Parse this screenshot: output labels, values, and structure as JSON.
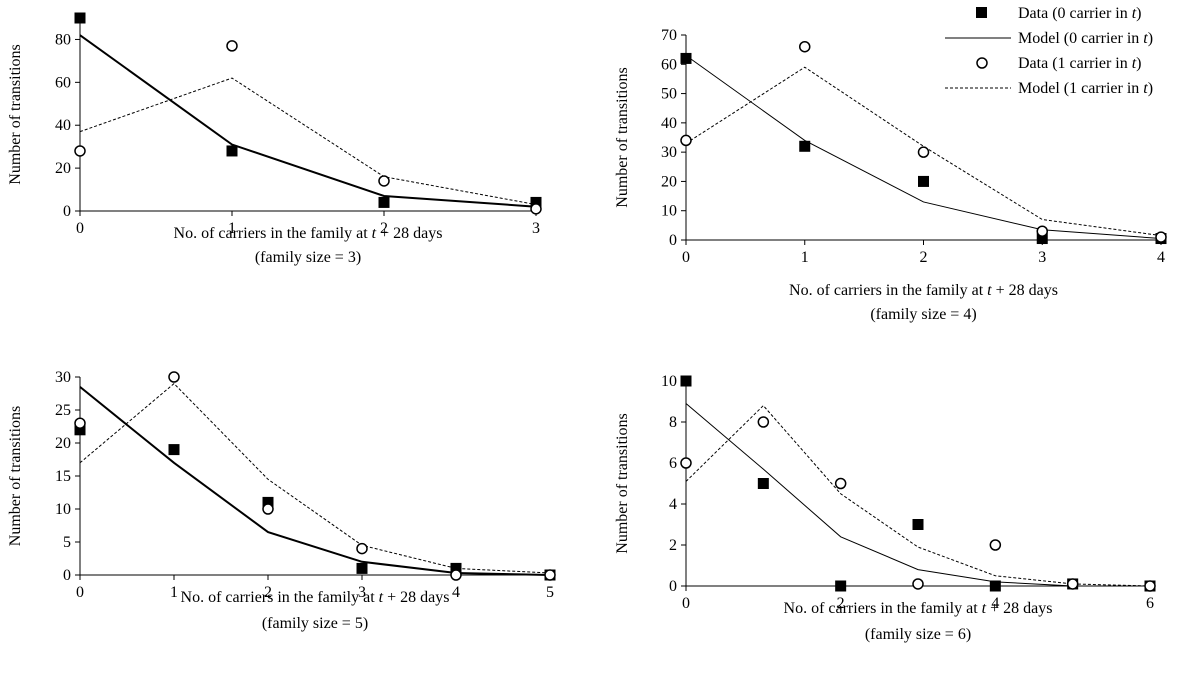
{
  "legend": {
    "items": [
      {
        "prefix": "Data (0 carrier in ",
        "var": "t",
        "suffix": ")",
        "marker": "square"
      },
      {
        "prefix": "Model (0 carrier in ",
        "var": "t",
        "suffix": ")",
        "marker": "solid-line"
      },
      {
        "prefix": "Data (1 carrier in ",
        "var": "t",
        "suffix": ")",
        "marker": "circle"
      },
      {
        "prefix": "Model (1 carrier in ",
        "var": "t",
        "suffix": ")",
        "marker": "dashed-line"
      }
    ]
  },
  "chart_data": [
    {
      "type": "line",
      "title": "",
      "xlabel": "No. of carriers in the family at t + 28 days",
      "xlabel_prefix": "No. of carriers in the family at ",
      "xlabel_var": "t",
      "xlabel_suffix": " + 28 days",
      "subtitle": "(family size = 3)",
      "ylabel": "Number of transitions",
      "xlim": [
        0,
        3
      ],
      "ylim": [
        0,
        90
      ],
      "xticks": [
        0,
        1,
        2,
        3
      ],
      "yticks": [
        0,
        20,
        40,
        60,
        80
      ],
      "series": [
        {
          "name": "Data (0 carrier in t)",
          "style": "square",
          "x": [
            0,
            1,
            2,
            3
          ],
          "y": [
            90,
            28,
            4,
            4
          ]
        },
        {
          "name": "Model (0 carrier in t)",
          "style": "solid",
          "x": [
            0,
            1,
            2,
            3
          ],
          "y": [
            82,
            31,
            7,
            2
          ]
        },
        {
          "name": "Data (1 carrier in t)",
          "style": "circle",
          "x": [
            0,
            1,
            2,
            3
          ],
          "y": [
            28,
            77,
            14,
            1
          ]
        },
        {
          "name": "Model (1 carrier in t)",
          "style": "dashed",
          "x": [
            0,
            1,
            2,
            3
          ],
          "y": [
            37,
            62,
            16,
            3
          ]
        }
      ]
    },
    {
      "type": "line",
      "title": "",
      "xlabel": "No. of carriers in the family at t + 28 days",
      "xlabel_prefix": "No. of carriers in the family at ",
      "xlabel_var": "t",
      "xlabel_suffix": " + 28 days",
      "subtitle": "(family size = 4)",
      "ylabel": "Number of transitions",
      "xlim": [
        0,
        4
      ],
      "ylim": [
        0,
        70
      ],
      "xticks": [
        0,
        1,
        2,
        3,
        4
      ],
      "yticks": [
        0,
        10,
        20,
        30,
        40,
        50,
        60,
        70
      ],
      "series": [
        {
          "name": "Data (0 carrier in t)",
          "style": "square",
          "x": [
            0,
            1,
            2,
            3,
            4
          ],
          "y": [
            62,
            32,
            20,
            0.5,
            0.5
          ]
        },
        {
          "name": "Model (0 carrier in t)",
          "style": "solid",
          "x": [
            0,
            1,
            2,
            3,
            4
          ],
          "y": [
            63,
            34,
            13,
            3.5,
            0.5
          ]
        },
        {
          "name": "Data (1 carrier in t)",
          "style": "circle",
          "x": [
            0,
            1,
            2,
            3,
            4
          ],
          "y": [
            34,
            66,
            30,
            3,
            1
          ]
        },
        {
          "name": "Model (1 carrier in t)",
          "style": "dashed",
          "x": [
            0,
            1,
            2,
            3,
            4
          ],
          "y": [
            33,
            59,
            32,
            7,
            1.5
          ]
        }
      ]
    },
    {
      "type": "line",
      "title": "",
      "xlabel": "No. of carriers in the family at t + 28 days",
      "xlabel_prefix": "No. of carriers in the family at ",
      "xlabel_var": "t",
      "xlabel_suffix": " + 28 days",
      "subtitle": "(family size = 5)",
      "ylabel": "Number of transitions",
      "xlim": [
        0,
        5
      ],
      "ylim": [
        0,
        30
      ],
      "xticks": [
        0,
        1,
        2,
        3,
        4,
        5
      ],
      "yticks": [
        0,
        5,
        10,
        15,
        20,
        25,
        30
      ],
      "series": [
        {
          "name": "Data (0 carrier in t)",
          "style": "square",
          "x": [
            0,
            1,
            2,
            3,
            4,
            5
          ],
          "y": [
            22,
            19,
            11,
            1,
            1,
            0
          ]
        },
        {
          "name": "Model (0 carrier in t)",
          "style": "solid",
          "x": [
            0,
            1,
            2,
            3,
            4,
            5
          ],
          "y": [
            28.5,
            17,
            6.5,
            2,
            0.3,
            0
          ]
        },
        {
          "name": "Data (1 carrier in t)",
          "style": "circle",
          "x": [
            0,
            1,
            2,
            3,
            4,
            5
          ],
          "y": [
            23,
            30,
            10,
            4,
            0,
            0
          ]
        },
        {
          "name": "Model (1 carrier in t)",
          "style": "dashed",
          "x": [
            0,
            1,
            2,
            3,
            4,
            5
          ],
          "y": [
            17,
            29,
            14.5,
            4.5,
            1,
            0.3
          ]
        }
      ]
    },
    {
      "type": "line",
      "title": "",
      "xlabel": "No. of carriers in the family at t + 28 days",
      "xlabel_prefix": "No. of carriers in the family at ",
      "xlabel_var": "t",
      "xlabel_suffix": " + 28 days",
      "subtitle": "(family size = 6)",
      "ylabel": "Number of transitions",
      "xlim": [
        0,
        6
      ],
      "ylim": [
        0,
        10
      ],
      "xticks": [
        0,
        2,
        4,
        6
      ],
      "yticks": [
        0,
        2,
        4,
        6,
        8,
        10
      ],
      "series": [
        {
          "name": "Data (0 carrier in t)",
          "style": "square",
          "x": [
            0,
            1,
            2,
            3,
            4,
            5,
            6
          ],
          "y": [
            10,
            5,
            0,
            3,
            0,
            0.1,
            0
          ]
        },
        {
          "name": "Model (0 carrier in t)",
          "style": "solid",
          "x": [
            0,
            1,
            2,
            3,
            4,
            5,
            6
          ],
          "y": [
            8.9,
            5.7,
            2.4,
            0.8,
            0.2,
            0,
            0
          ]
        },
        {
          "name": "Data (1 carrier in t)",
          "style": "circle",
          "x": [
            0,
            1,
            2,
            3,
            4,
            5,
            6
          ],
          "y": [
            6,
            8,
            5,
            0.1,
            2,
            0.1,
            0
          ]
        },
        {
          "name": "Model (1 carrier in t)",
          "style": "dashed",
          "x": [
            0,
            1,
            2,
            3,
            4,
            5,
            6
          ],
          "y": [
            5.1,
            8.8,
            4.5,
            1.9,
            0.5,
            0.1,
            0
          ]
        }
      ]
    }
  ]
}
